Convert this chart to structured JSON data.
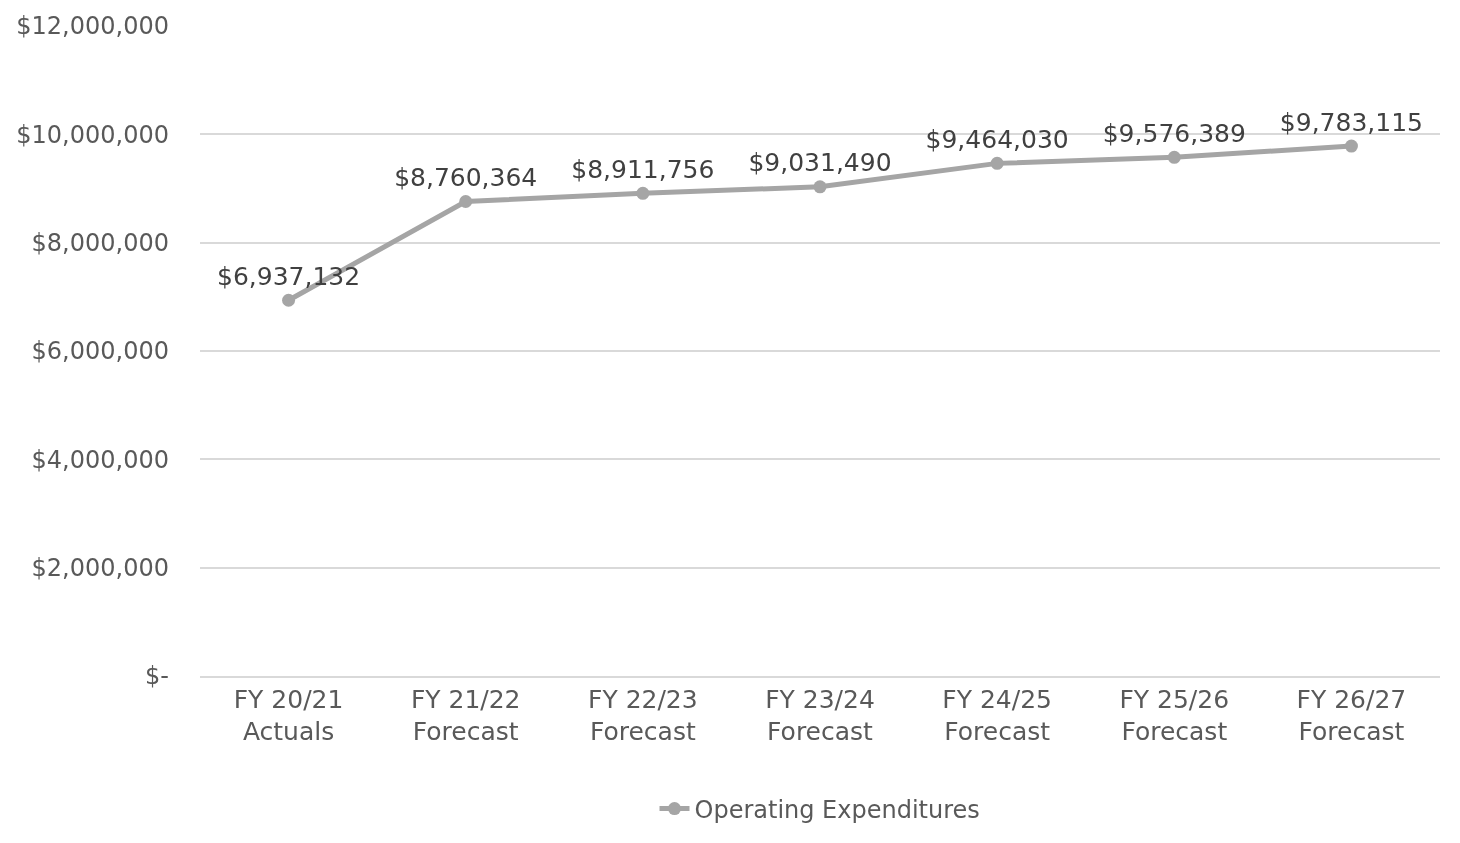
{
  "chart_data": {
    "type": "line",
    "categories": [
      "FY 20/21\nActuals",
      "FY 21/22\nForecast",
      "FY 22/23\nForecast",
      "FY 23/24\nForecast",
      "FY 24/25\nForecast",
      "FY 25/26\nForecast",
      "FY 26/27\nForecast"
    ],
    "series": [
      {
        "name": "Operating Expenditures",
        "color": "#a5a5a5",
        "values": [
          6937132,
          8760364,
          8911756,
          9031490,
          9464030,
          9576389,
          9783115
        ],
        "value_labels": [
          "$6,937,132",
          "$8,760,364",
          "$8,911,756",
          "$9,031,490",
          "$9,464,030",
          "$9,576,389",
          "$9,783,115"
        ]
      }
    ],
    "ylim": [
      0,
      12000000
    ],
    "yticks": [
      {
        "value": 0,
        "label": "$-"
      },
      {
        "value": 2000000,
        "label": "$2,000,000"
      },
      {
        "value": 4000000,
        "label": "$4,000,000"
      },
      {
        "value": 6000000,
        "label": "$6,000,000"
      },
      {
        "value": 8000000,
        "label": "$8,000,000"
      },
      {
        "value": 10000000,
        "label": "$10,000,000"
      },
      {
        "value": 12000000,
        "label": "$12,000,000"
      }
    ],
    "grid": "y",
    "legend": "bottom",
    "marker": "circle",
    "line_style": "solid"
  }
}
